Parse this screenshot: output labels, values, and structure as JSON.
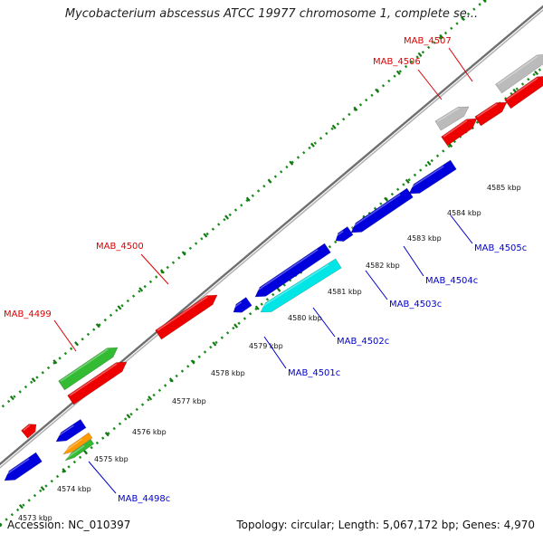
{
  "title": "Mycobacterium abscessus ATCC 19977 chromosome 1, complete se...",
  "footer": {
    "accession": "Accession: NC_010397",
    "topology": "Topology: circular; Length: 5,067,172 bp; Genes: 4,970"
  },
  "colors": {
    "backbone": "#8c8c8c",
    "tick_dots": "#1a8c1a",
    "label_forward": "#dd0000",
    "label_reverse": "#0000cc",
    "gene_red": "#ee0000",
    "gene_blue": "#0000dd",
    "gene_green": "#33bb33",
    "gene_cyan": "#00e5e5",
    "gene_gray": "#bbbbbb",
    "gene_orange": "#ff9900"
  },
  "tick_labels": [
    "4573 kbp",
    "4574 kbp",
    "4575 kbp",
    "4576 kbp",
    "4577 kbp",
    "4578 kbp",
    "4579 kbp",
    "4580 kbp",
    "4581 kbp",
    "4582 kbp",
    "4583 kbp",
    "4584 kbp",
    "4585 kbp"
  ],
  "gene_labels": [
    {
      "text": "MAB_4499",
      "strand": "forward"
    },
    {
      "text": "MAB_4500",
      "strand": "forward"
    },
    {
      "text": "MAB_4506",
      "strand": "forward"
    },
    {
      "text": "MAB_4507",
      "strand": "forward"
    },
    {
      "text": "MAB_4498c",
      "strand": "reverse"
    },
    {
      "text": "MAB_4501c",
      "strand": "reverse"
    },
    {
      "text": "MAB_4502c",
      "strand": "reverse"
    },
    {
      "text": "MAB_4503c",
      "strand": "reverse"
    },
    {
      "text": "MAB_4504c",
      "strand": "reverse"
    },
    {
      "text": "MAB_4505c",
      "strand": "reverse"
    }
  ]
}
